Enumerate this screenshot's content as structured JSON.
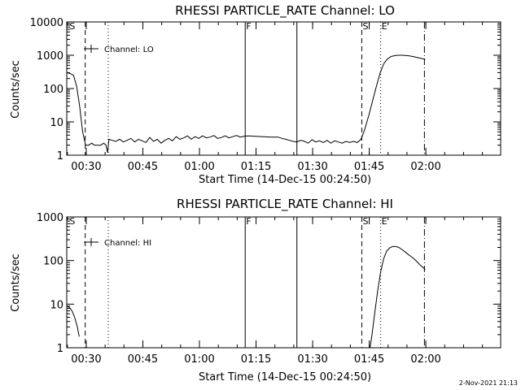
{
  "chart_data": [
    {
      "type": "line",
      "title": "RHESSI PARTICLE_RATE Channel: LO",
      "xlabel": "Start Time (14-Dec-15 00:24:50)",
      "ylabel": "Counts/sec",
      "yscale": "log",
      "ylim": [
        1,
        10000
      ],
      "xlim_minutes": [
        0,
        115
      ],
      "x_ticks": [
        {
          "t": 5.17,
          "label": "00:30"
        },
        {
          "t": 20.17,
          "label": "00:45"
        },
        {
          "t": 35.17,
          "label": "01:00"
        },
        {
          "t": 50.17,
          "label": "01:15"
        },
        {
          "t": 65.17,
          "label": "01:30"
        },
        {
          "t": 80.17,
          "label": "01:45"
        },
        {
          "t": 95.17,
          "label": "02:00"
        }
      ],
      "y_ticks": [
        {
          "v": 1,
          "label": "1"
        },
        {
          "v": 10,
          "label": "10"
        },
        {
          "v": 100,
          "label": "100"
        },
        {
          "v": 1000,
          "label": "1000"
        },
        {
          "v": 10000,
          "label": "10000"
        }
      ],
      "legend": "Channel: LO",
      "legend_position": "top-left",
      "markers": [
        {
          "t": 0.5,
          "label": "S",
          "style": "none"
        },
        {
          "t": 4.9,
          "label": "",
          "style": "dashed"
        },
        {
          "t": 11.0,
          "label": "",
          "style": "dotted"
        },
        {
          "t": 47.3,
          "label": "F",
          "style": "solid"
        },
        {
          "t": 61.0,
          "label": "",
          "style": "solid"
        },
        {
          "t": 78.2,
          "label": "S",
          "style": "dashed"
        },
        {
          "t": 83.2,
          "label": "E",
          "style": "dotted"
        },
        {
          "t": 94.8,
          "label": "",
          "style": "dashdot"
        }
      ],
      "series": [
        {
          "name": "LO",
          "t": [
            0,
            1,
            1.8,
            2.6,
            3.4,
            4.2,
            5.0,
            5.8,
            6.6,
            7.4,
            8.2,
            9.0,
            9.8,
            10.4,
            10.8,
            11.2,
            12.0,
            13.0,
            14.0,
            15.0,
            16.0,
            17.0,
            18.0,
            19.0,
            20.0,
            21.0,
            22.0,
            23.0,
            24.0,
            25.0,
            26.0,
            27.0,
            28.0,
            29.0,
            30.0,
            31.0,
            32.0,
            33.0,
            34.0,
            35.0,
            36.0,
            37.0,
            38.0,
            39.0,
            40.0,
            41.0,
            42.0,
            43.0,
            44.0,
            45.0,
            46.0,
            47.0,
            48.0,
            50.0,
            52.0,
            54.0,
            56.0,
            57.0,
            58.0,
            59.0,
            60.0,
            61.0,
            62.0,
            63.0,
            64.0,
            65.0,
            66.0,
            67.0,
            68.0,
            69.0,
            70.0,
            71.0,
            72.0,
            73.0,
            74.0,
            75.0,
            76.0,
            77.0,
            78.0,
            79.0,
            80.0,
            81.0,
            82.0,
            83.0,
            84.0,
            85.0,
            86.0,
            87.0,
            88.0,
            89.0,
            90.0,
            91.0,
            92.0,
            93.0,
            94.0,
            95.0
          ],
          "values": [
            300,
            280,
            250,
            120,
            30,
            5,
            2,
            2,
            2.3,
            2,
            2,
            2,
            2.3,
            2,
            1.2,
            3,
            2.8,
            2.6,
            3,
            2.5,
            2.8,
            3.2,
            2.5,
            3,
            2.7,
            2.4,
            3.4,
            2.6,
            3,
            2.3,
            2.8,
            3.2,
            2.7,
            3.6,
            3,
            3.3,
            3.8,
            3,
            3.6,
            3.2,
            3.8,
            3.3,
            3.5,
            3.9,
            3.2,
            3.4,
            3.8,
            3.3,
            3.6,
            3.9,
            3.5,
            3.7,
            3.8,
            3.7,
            3.6,
            3.5,
            3.5,
            3.2,
            3.0,
            2.8,
            2.6,
            2.5,
            2.8,
            2.6,
            2.3,
            2.9,
            2.5,
            2.7,
            2.4,
            2.8,
            2.3,
            2.7,
            2.5,
            2.3,
            2.6,
            2.4,
            2.6,
            2.4,
            3,
            6,
            15,
            40,
            110,
            280,
            550,
            780,
            920,
            980,
            1000,
            1000,
            980,
            950,
            900,
            850,
            800,
            760
          ]
        }
      ]
    },
    {
      "type": "line",
      "title": "RHESSI PARTICLE_RATE Channel: HI",
      "xlabel": "Start Time (14-Dec-15 00:24:50)",
      "ylabel": "Counts/sec",
      "yscale": "log",
      "ylim": [
        1,
        1000
      ],
      "xlim_minutes": [
        0,
        115
      ],
      "x_ticks": [
        {
          "t": 5.17,
          "label": "00:30"
        },
        {
          "t": 20.17,
          "label": "00:45"
        },
        {
          "t": 35.17,
          "label": "01:00"
        },
        {
          "t": 50.17,
          "label": "01:15"
        },
        {
          "t": 65.17,
          "label": "01:30"
        },
        {
          "t": 80.17,
          "label": "01:45"
        },
        {
          "t": 95.17,
          "label": "02:00"
        }
      ],
      "y_ticks": [
        {
          "v": 1,
          "label": "1"
        },
        {
          "v": 10,
          "label": "10"
        },
        {
          "v": 100,
          "label": "100"
        },
        {
          "v": 1000,
          "label": "1000"
        }
      ],
      "legend": "Channel: HI",
      "legend_position": "top-left",
      "markers": [
        {
          "t": 0.5,
          "label": "S",
          "style": "none"
        },
        {
          "t": 4.9,
          "label": "",
          "style": "dashed"
        },
        {
          "t": 11.0,
          "label": "",
          "style": "dotted"
        },
        {
          "t": 47.3,
          "label": "F",
          "style": "solid"
        },
        {
          "t": 61.0,
          "label": "",
          "style": "solid"
        },
        {
          "t": 78.2,
          "label": "S",
          "style": "dashed"
        },
        {
          "t": 83.2,
          "label": "E",
          "style": "dotted"
        },
        {
          "t": 94.8,
          "label": "",
          "style": "dashdot"
        }
      ],
      "series": [
        {
          "name": "HI",
          "t": [
            0,
            0.7,
            1.4,
            2.1,
            2.8,
            3.3
          ],
          "values": [
            9,
            8.5,
            7,
            5,
            3,
            1.8
          ]
        },
        {
          "name": "HI",
          "t": [
            80.4,
            80.9,
            81.6,
            82.4,
            83.2,
            84.0,
            84.8,
            85.6,
            86.4,
            87.2,
            88.0,
            88.8,
            89.6,
            90.4,
            91.2,
            92.0,
            92.8,
            93.6,
            94.4,
            95.0
          ],
          "values": [
            1,
            2,
            6,
            20,
            55,
            110,
            165,
            195,
            210,
            210,
            200,
            180,
            160,
            140,
            125,
            110,
            95,
            80,
            70,
            62
          ]
        }
      ]
    }
  ],
  "timestamp": "2-Nov-2021 21:13"
}
